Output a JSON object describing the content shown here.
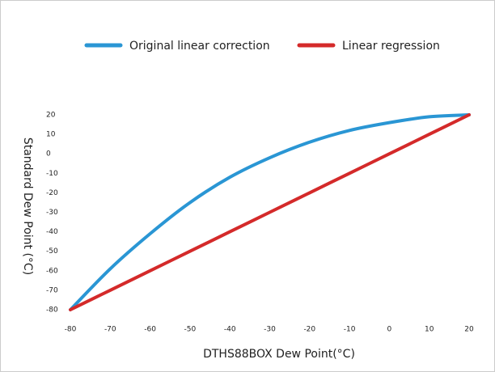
{
  "chart_data": {
    "type": "line",
    "xlabel": "DTHS88BOX Dew Point(°C)",
    "ylabel": "Standard Dew Point (°C)",
    "x": [
      -80,
      -70,
      -60,
      -50,
      -40,
      -30,
      -20,
      -10,
      0,
      10,
      20
    ],
    "series": [
      {
        "name": "Original linear correction",
        "color": "#2a96d4",
        "values": [
          -80,
          -59,
          -41,
          -25,
          -12,
          -2,
          6,
          12,
          16,
          19,
          20
        ]
      },
      {
        "name": "Linear regression",
        "color": "#d42a2a",
        "values": [
          -80,
          -70,
          -60,
          -50,
          -40,
          -30,
          -20,
          -10,
          0,
          10,
          20
        ]
      }
    ],
    "xlim": [
      -80,
      20
    ],
    "xticks": [
      -80,
      -70,
      -60,
      -50,
      -40,
      -30,
      -20,
      -10,
      0,
      10,
      20
    ],
    "ylim": [
      -80,
      20
    ],
    "yticks": [
      -80,
      -70,
      -60,
      -50,
      -40,
      -30,
      -20,
      -10,
      0,
      10,
      20
    ],
    "legend": "top",
    "grid": false
  }
}
